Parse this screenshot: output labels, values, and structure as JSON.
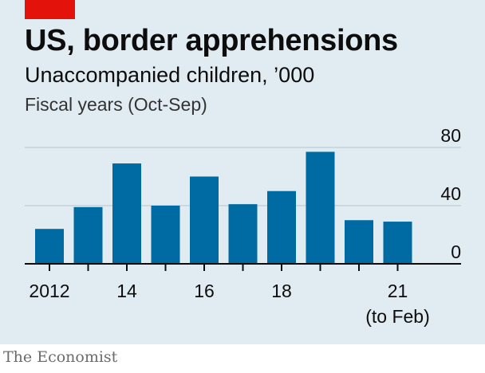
{
  "header": {
    "title": "US, border apprehensions",
    "subtitle": "Unaccompanied children, ’000",
    "note": "Fiscal years (Oct-Sep)"
  },
  "source": "The Economist",
  "colors": {
    "background": "#e1ebf2",
    "bar": "#006ba2",
    "accent": "#e3120b"
  },
  "chart_data": {
    "type": "bar",
    "title": "US, border apprehensions",
    "subtitle": "Unaccompanied children, ’000",
    "categories": [
      "2012",
      "2013",
      "2014",
      "2015",
      "2016",
      "2017",
      "2018",
      "2019",
      "2020",
      "2021"
    ],
    "values": [
      24,
      39,
      69,
      40,
      60,
      41,
      50,
      77,
      30,
      29
    ],
    "ylim": [
      0,
      80
    ],
    "yticks": [
      0,
      40,
      80
    ],
    "x_tick_labels": [
      {
        "index": 0,
        "label": "2012"
      },
      {
        "index": 2,
        "label": "14"
      },
      {
        "index": 4,
        "label": "16"
      },
      {
        "index": 6,
        "label": "18"
      },
      {
        "index": 9,
        "label": "21"
      }
    ],
    "x_tick_sublabel": {
      "index": 9,
      "label": "(to Feb)"
    },
    "y_axis_side": "right",
    "grid": true
  }
}
